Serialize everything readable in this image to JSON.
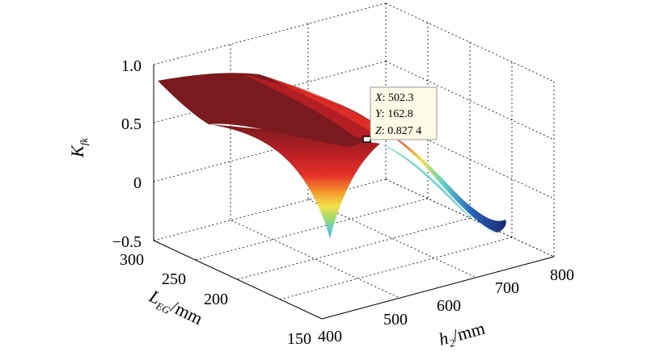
{
  "chart_data": {
    "type": "surface",
    "x_axis": {
      "label_main": "h",
      "label_sub": "2",
      "label_unit": "/mm",
      "ticks": [
        "400",
        "500",
        "600",
        "700",
        "800"
      ],
      "range": [
        400,
        800
      ]
    },
    "y_axis": {
      "label_main": "L",
      "label_sub": "EG",
      "label_unit": "/mm",
      "ticks": [
        "150",
        "200",
        "250",
        "300"
      ],
      "range": [
        150,
        300
      ]
    },
    "z_axis": {
      "label_main": "K",
      "label_sub": "fk",
      "ticks": [
        "1.0",
        "0.5",
        "0",
        "−0.5"
      ],
      "range": [
        -0.5,
        1.0
      ]
    },
    "grid": true,
    "colormap": [
      "#1b2b6f",
      "#2a5fb8",
      "#3fa7d8",
      "#5fd0c8",
      "#a6d96a",
      "#f2e14a",
      "#f59a2c",
      "#e8312a",
      "#b81f24",
      "#7a1a1e"
    ],
    "datatip": {
      "x_label": "X",
      "x_value": "502.3",
      "y_label": "Y",
      "y_value": "162.8",
      "z_label": "Z",
      "z_value": "0.827 4"
    },
    "surface_summary": [
      {
        "h2": 400,
        "LEG": 300,
        "Kfk": 0.85
      },
      {
        "h2": 400,
        "LEG": 150,
        "Kfk": -0.5
      },
      {
        "h2": 502.3,
        "LEG": 162.8,
        "Kfk": 0.8274
      },
      {
        "h2": 800,
        "LEG": 150,
        "Kfk": -0.45
      }
    ]
  }
}
